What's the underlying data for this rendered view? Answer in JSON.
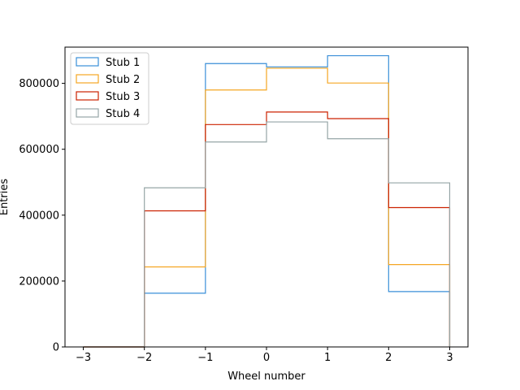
{
  "chart_data": {
    "type": "histogram-step",
    "xlabel": "Wheel number",
    "ylabel": "Entries",
    "xlim": [
      -3.3,
      3.3
    ],
    "ylim": [
      0,
      910000
    ],
    "xticks": [
      -3,
      -2,
      -1,
      0,
      1,
      2,
      3
    ],
    "yticks": [
      0,
      200000,
      400000,
      600000,
      800000
    ],
    "bin_edges": [
      -3,
      -2,
      -1,
      0,
      1,
      2,
      3
    ],
    "grid": false,
    "legend_position": "top-left",
    "series": [
      {
        "name": "Stub 1",
        "color": "#3a8fd8",
        "values": [
          0,
          163000,
          860000,
          850000,
          884000,
          168000
        ]
      },
      {
        "name": "Stub 2",
        "color": "#f5a623",
        "values": [
          0,
          243000,
          780000,
          846000,
          801000,
          250000
        ]
      },
      {
        "name": "Stub 3",
        "color": "#cc2200",
        "values": [
          0,
          413000,
          675000,
          713000,
          693000,
          423000
        ]
      },
      {
        "name": "Stub 4",
        "color": "#95a5a6",
        "values": [
          0,
          483000,
          622000,
          683000,
          632000,
          498000
        ]
      }
    ]
  }
}
